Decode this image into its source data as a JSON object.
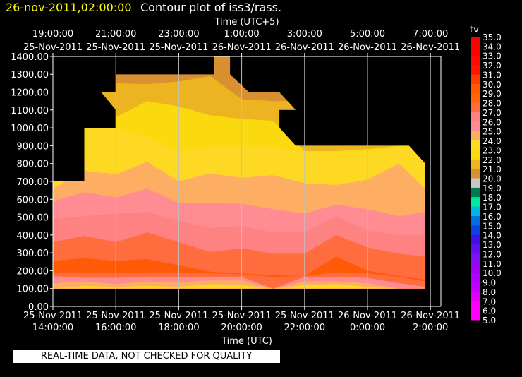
{
  "header": {
    "datetime": "26-nov-2011,02:00:00",
    "title": "Contour plot of iss3/rass.",
    "datetime_color": "#ffff00"
  },
  "footer": {
    "notice": "REAL-TIME DATA, NOT CHECKED FOR QUALITY"
  },
  "chart_data": {
    "type": "contour",
    "variable": "tv",
    "xlabel_bottom": "Time (UTC)",
    "xlabel_top": "Time (UTC+5)",
    "ylim": [
      0,
      1400
    ],
    "y_ticks": [
      "0.00",
      "100.00",
      "200.00",
      "300.00",
      "400.00",
      "500.00",
      "600.00",
      "700.00",
      "800.00",
      "900.00",
      "1000.00",
      "1100.00",
      "1200.00",
      "1300.00",
      "1400.00"
    ],
    "x_ticks_bottom": [
      {
        "date": "25-Nov-2011",
        "time": "14:00:00",
        "t": "2011-11-25T14:00"
      },
      {
        "date": "25-Nov-2011",
        "time": "16:00:00",
        "t": "2011-11-25T16:00"
      },
      {
        "date": "25-Nov-2011",
        "time": "18:00:00",
        "t": "2011-11-25T18:00"
      },
      {
        "date": "25-Nov-2011",
        "time": "20:00:00",
        "t": "2011-11-25T20:00"
      },
      {
        "date": "25-Nov-2011",
        "time": "22:00:00",
        "t": "2011-11-25T22:00"
      },
      {
        "date": "26-Nov-2011",
        "time": "0:00:00",
        "t": "2011-11-26T00:00"
      },
      {
        "date": "26-Nov-2011",
        "time": "2:00:00",
        "t": "2011-11-26T02:00"
      }
    ],
    "x_ticks_top": [
      {
        "date": "25-Nov-2011",
        "time": "19:00:00"
      },
      {
        "date": "25-Nov-2011",
        "time": "21:00:00"
      },
      {
        "date": "25-Nov-2011",
        "time": "23:00:00"
      },
      {
        "date": "26-Nov-2011",
        "time": "1:00:00"
      },
      {
        "date": "26-Nov-2011",
        "time": "3:00:00"
      },
      {
        "date": "26-Nov-2011",
        "time": "5:00:00"
      },
      {
        "date": "26-Nov-2011",
        "time": "7:00:00"
      }
    ],
    "grid": true,
    "colorbar": {
      "labels": [
        "35.0",
        "34.0",
        "33.0",
        "32.0",
        "31.0",
        "30.0",
        "29.0",
        "28.0",
        "27.0",
        "26.0",
        "25.0",
        "24.0",
        "23.0",
        "22.0",
        "21.0",
        "20.0",
        "19.0",
        "18.0",
        "17.0",
        "16.0",
        "15.0",
        "14.0",
        "13.0",
        "12.0",
        "11.0",
        "10.0",
        "9.0",
        "8.0",
        "7.0",
        "6.0",
        "5.0"
      ],
      "colors": [
        "#ff0000",
        "#ff0000",
        "#ff0a00",
        "#ff1400",
        "#ff3c00",
        "#ff5a00",
        "#ff6408",
        "#ff6d3e",
        "#ff8282",
        "#ff8c92",
        "#fdae62",
        "#fdd923",
        "#fad90e",
        "#ecb420",
        "#d89030",
        "#c8c8c8",
        "#007850",
        "#00e8a0",
        "#00b4e0",
        "#0070e0",
        "#1040e0",
        "#4010e8",
        "#6010f0",
        "#8010f0",
        "#a000f8",
        "#b000ff",
        "#c000ff",
        "#e000f8",
        "#ff00ff",
        "#ff00ff"
      ]
    },
    "data_outline": [
      [
        "2011-11-25T14:00",
        100
      ],
      [
        "2011-11-25T14:00",
        700
      ],
      [
        "2011-11-25T15:00",
        700
      ],
      [
        "2011-11-25T15:00",
        1000
      ],
      [
        "2011-11-25T16:00",
        1000
      ],
      [
        "2011-11-25T16:00",
        1100
      ],
      [
        "2011-11-25T15:32",
        1200
      ],
      [
        "2011-11-25T16:00",
        1200
      ],
      [
        "2011-11-25T16:00",
        1300
      ],
      [
        "2011-11-25T19:08",
        1300
      ],
      [
        "2011-11-25T19:08",
        1400
      ],
      [
        "2011-11-25T19:38",
        1400
      ],
      [
        "2011-11-25T19:38",
        1300
      ],
      [
        "2011-11-25T20:14",
        1200
      ],
      [
        "2011-11-25T21:12",
        1200
      ],
      [
        "2011-11-25T21:43",
        1100
      ],
      [
        "2011-11-25T21:12",
        1100
      ],
      [
        "2011-11-25T21:12",
        1000
      ],
      [
        "2011-11-25T21:43",
        900
      ],
      [
        "2011-11-26T01:19",
        900
      ],
      [
        "2011-11-26T01:50",
        800
      ],
      [
        "2011-11-26T01:50",
        100
      ]
    ],
    "band_times": [
      "2011-11-25T14:00",
      "2011-11-25T15:00",
      "2011-11-25T16:00",
      "2011-11-25T17:00",
      "2011-11-25T18:00",
      "2011-11-25T19:00",
      "2011-11-25T20:00",
      "2011-11-25T21:00",
      "2011-11-25T22:00",
      "2011-11-25T23:00",
      "2011-11-26T00:00",
      "2011-11-26T01:00",
      "2011-11-26T01:50"
    ],
    "base_band": {
      "range": "20-21",
      "color": "#d89030"
    },
    "bands": [
      {
        "range": "21-22",
        "color": "#ecb420",
        "top": [
          1310,
          1310,
          1250,
          1245,
          1260,
          1290,
          1160,
          1150,
          1150,
          1150,
          1150,
          1150,
          1150
        ]
      },
      {
        "range": "22-23",
        "color": "#fad90e",
        "top": [
          1050,
          1050,
          1060,
          1150,
          1120,
          1070,
          1050,
          1040,
          870,
          870,
          880,
          900,
          900
        ]
      },
      {
        "range": "23-24",
        "color": "#fdd923",
        "top": [
          1000,
          1000,
          1000,
          950,
          860,
          900,
          900,
          900,
          860,
          860,
          870,
          890,
          890
        ]
      },
      {
        "range": "24-25",
        "color": "#fdae62",
        "top": [
          660,
          760,
          740,
          810,
          700,
          745,
          720,
          735,
          690,
          680,
          710,
          800,
          660
        ]
      },
      {
        "range": "25-26",
        "color": "#ff8c92",
        "top": [
          590,
          640,
          610,
          660,
          580,
          580,
          575,
          545,
          520,
          570,
          545,
          505,
          530
        ]
      },
      {
        "range": "26-27",
        "color": "#ff8282",
        "top": [
          490,
          505,
          520,
          530,
          480,
          440,
          450,
          415,
          415,
          505,
          425,
          400,
          400
        ]
      },
      {
        "range": "27-28",
        "color": "#ff6d3e",
        "top": [
          360,
          395,
          360,
          415,
          360,
          305,
          325,
          295,
          295,
          400,
          330,
          295,
          280
        ]
      },
      {
        "range": "28-29",
        "color": "#ff5a08",
        "top": [
          255,
          270,
          255,
          265,
          230,
          195,
          185,
          175,
          170,
          280,
          200,
          170,
          150
        ]
      },
      {
        "range": "27-28",
        "color": "#ff6d3e",
        "top": [
          190,
          190,
          185,
          190,
          190,
          185,
          180,
          165,
          170,
          190,
          185,
          165,
          140
        ]
      },
      {
        "range": "25-26",
        "color": "#ff8c92",
        "top": [
          170,
          160,
          160,
          165,
          165,
          165,
          165,
          100,
          165,
          165,
          160,
          130,
          110
        ]
      },
      {
        "range": "24-25",
        "color": "#fdae62",
        "top": [
          130,
          140,
          125,
          140,
          135,
          145,
          145,
          100,
          140,
          140,
          130,
          100,
          100
        ]
      },
      {
        "range": "23-24",
        "color": "#fdd923",
        "top": [
          100,
          115,
          110,
          115,
          110,
          125,
          120,
          100,
          120,
          125,
          110,
          100,
          100
        ]
      }
    ]
  }
}
